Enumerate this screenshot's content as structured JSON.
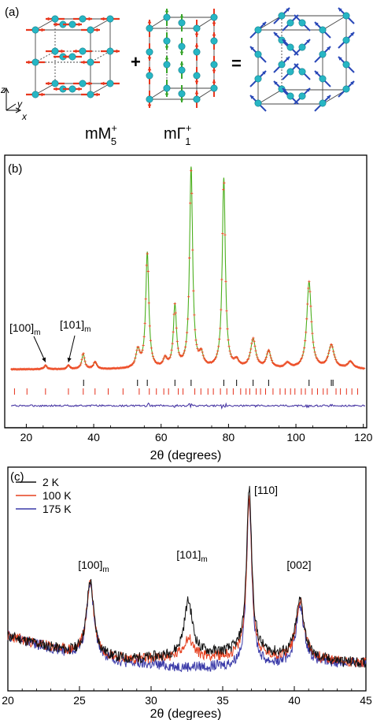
{
  "panel_a": {
    "label": "(a)",
    "mode1_main": "mM",
    "mode1_sub": "5",
    "mode1_sup": "+",
    "plus": "+",
    "mode2_main": "mΓ",
    "mode2_sub": "1",
    "mode2_sup": "+",
    "equals": "=",
    "axis_z": "z",
    "axis_y": "y",
    "axis_x": "x",
    "colors": {
      "atom": "#27b6c4",
      "spin_red": "#e8371e",
      "spin_green": "#3aa52c",
      "spin_blue": "#2a49b8"
    }
  },
  "chart_data": [
    {
      "type": "line",
      "panel_label": "(b)",
      "xlabel": "2θ (degrees)",
      "ylabel": "",
      "xlim": [
        15,
        121
      ],
      "ylim": [
        0,
        100
      ],
      "xticks": [
        20,
        40,
        60,
        80,
        100,
        120
      ],
      "grid": false,
      "series": [
        {
          "role": "observed",
          "color": "#ef4a25",
          "peaks": [
            {
              "x": 25.7,
              "h": 1.9,
              "w": 0.45
            },
            {
              "x": 32.5,
              "h": 1.7,
              "w": 0.55
            },
            {
              "x": 36.9,
              "h": 7.4,
              "w": 0.5
            },
            {
              "x": 40.4,
              "h": 3.4,
              "w": 0.6
            },
            {
              "x": 53.1,
              "h": 8.6,
              "w": 0.7
            },
            {
              "x": 55.9,
              "h": 56,
              "w": 0.55
            },
            {
              "x": 61.2,
              "h": 4.2,
              "w": 0.7
            },
            {
              "x": 64.1,
              "h": 30,
              "w": 0.55
            },
            {
              "x": 68.9,
              "h": 97,
              "w": 0.55
            },
            {
              "x": 71.9,
              "h": 6.0,
              "w": 0.7
            },
            {
              "x": 78.6,
              "h": 92,
              "w": 0.55
            },
            {
              "x": 82.4,
              "h": 3.2,
              "w": 0.8
            },
            {
              "x": 87.3,
              "h": 14,
              "w": 0.9
            },
            {
              "x": 91.9,
              "h": 8.2,
              "w": 0.8
            },
            {
              "x": 97.5,
              "h": 2.5,
              "w": 0.9
            },
            {
              "x": 103.9,
              "h": 42,
              "w": 0.8
            },
            {
              "x": 110.5,
              "h": 11.2,
              "w": 1.0
            },
            {
              "x": 116.2,
              "h": 3.4,
              "w": 1.0
            }
          ],
          "background": 1.2
        },
        {
          "role": "calculated",
          "color": "#4caf1e"
        },
        {
          "role": "difference",
          "color": "#3c2a9e"
        }
      ],
      "tick_marks": {
        "black": [
          37.0,
          53.0,
          55.9,
          64.1,
          68.9,
          78.6,
          82.4,
          87.3,
          91.9,
          103.9,
          110.5,
          111.0
        ],
        "red": [
          16.5,
          20.2,
          25.7,
          32.5,
          36.9,
          40.4,
          44.3,
          48.7,
          53.5,
          56.5,
          58.6,
          60.8,
          62.2,
          65.1,
          66.5,
          70.0,
          71.8,
          73.9,
          75.5,
          77.6,
          79.5,
          81.4,
          83.6,
          85.2,
          86.3,
          88.2,
          89.5,
          91.0,
          93.2,
          95.3,
          96.8,
          98.4,
          99.7,
          101.6,
          102.8,
          104.8,
          106.4,
          108.1,
          109.3,
          111.9,
          113.2,
          115.0,
          116.6,
          118.3
        ]
      },
      "annotations": [
        {
          "main": "[100]",
          "sub": "m",
          "target": 25.7
        },
        {
          "main": "[101]",
          "sub": "m",
          "target": 32.5
        }
      ]
    },
    {
      "type": "line",
      "panel_label": "(c)",
      "xlabel": "2θ (degrees)",
      "ylabel": "",
      "xlim": [
        20,
        45
      ],
      "ylim": [
        0,
        100
      ],
      "xticks": [
        20,
        25,
        30,
        35,
        40,
        45
      ],
      "grid": false,
      "legend_position": "top-left",
      "series": [
        {
          "name": "2 K",
          "color": "#111111",
          "baseline": [
            20,
            12,
            8,
            10,
            12,
            8,
            6
          ],
          "peaks": [
            {
              "x": 25.75,
              "h": 38,
              "w": 0.3
            },
            {
              "x": 32.6,
              "h": 28,
              "w": 0.35
            },
            {
              "x": 36.85,
              "h": 84,
              "w": 0.22
            },
            {
              "x": 40.4,
              "h": 30,
              "w": 0.35
            }
          ]
        },
        {
          "name": "100 K",
          "color": "#e5401f",
          "baseline": [
            20,
            12,
            8,
            9,
            9,
            8,
            6
          ],
          "peaks": [
            {
              "x": 25.75,
              "h": 38,
              "w": 0.3
            },
            {
              "x": 32.6,
              "h": 10,
              "w": 0.4
            },
            {
              "x": 36.85,
              "h": 82,
              "w": 0.22
            },
            {
              "x": 40.4,
              "h": 30,
              "w": 0.35
            }
          ]
        },
        {
          "name": "175 K",
          "color": "#3a3aa8",
          "baseline": [
            20,
            11,
            6,
            4,
            4,
            6,
            6
          ],
          "peaks": [
            {
              "x": 25.75,
              "h": 39,
              "w": 0.3
            },
            {
              "x": 36.85,
              "h": 87,
              "w": 0.22
            },
            {
              "x": 40.4,
              "h": 29,
              "w": 0.35
            }
          ]
        }
      ],
      "annotations": [
        {
          "main": "[100]",
          "sub": "m",
          "target": 25.75
        },
        {
          "main": "[101]",
          "sub": "m",
          "target": 32.6
        },
        {
          "main": "[110]",
          "sub": "",
          "target": 36.85
        },
        {
          "main": "[002]",
          "sub": "",
          "target": 40.4
        }
      ]
    }
  ]
}
